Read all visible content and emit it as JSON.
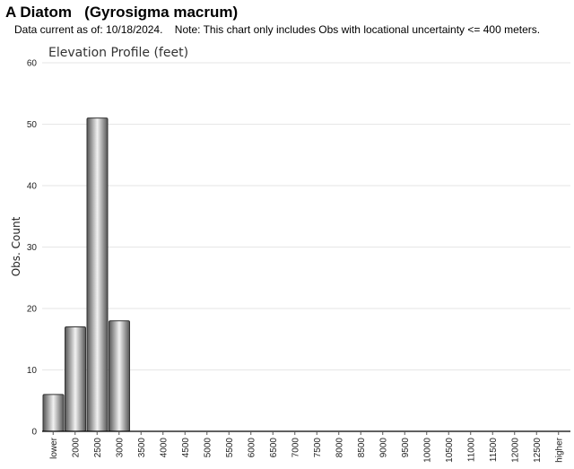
{
  "header": {
    "title": "A Diatom   (Gyrosigma macrum)",
    "note": "Data current as of: 10/18/2024.    Note: This chart only includes Obs with locational uncertainty <= 400 meters."
  },
  "colors": {
    "bar_dark": "#555555",
    "bar_light": "#f2f2f2",
    "gridline": "#e6e6e6",
    "axis": "#000000"
  },
  "chart_data": {
    "type": "bar",
    "title": "Elevation Profile (feet)",
    "xlabel": "",
    "ylabel": "Obs. Count",
    "ylim": [
      0,
      60
    ],
    "yticks": [
      0,
      10,
      20,
      30,
      40,
      50,
      60
    ],
    "grid": true,
    "categories": [
      "lower",
      "2000",
      "2500",
      "3000",
      "3500",
      "4000",
      "4500",
      "5000",
      "5500",
      "6000",
      "6500",
      "7000",
      "7500",
      "8000",
      "8500",
      "9000",
      "9500",
      "10000",
      "10500",
      "11000",
      "11500",
      "12000",
      "12500",
      "higher"
    ],
    "values": [
      6,
      17,
      51,
      18,
      0,
      0,
      0,
      0,
      0,
      0,
      0,
      0,
      0,
      0,
      0,
      0,
      0,
      0,
      0,
      0,
      0,
      0,
      0,
      0
    ]
  }
}
